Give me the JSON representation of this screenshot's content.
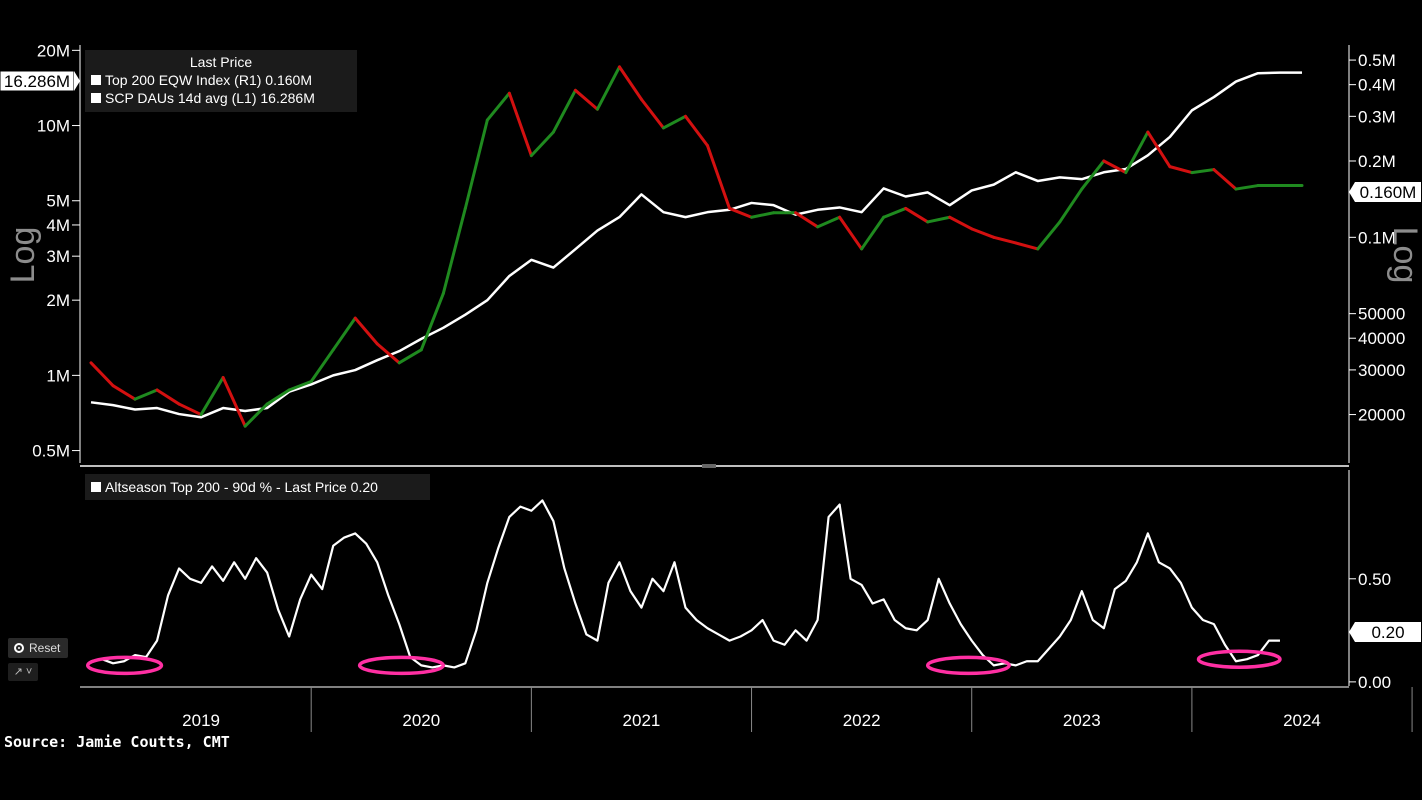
{
  "source": "Source: Jamie Coutts, CMT",
  "controls": {
    "reset_label": "Reset",
    "chart_type_label": "↗ ˅"
  },
  "chart_data": [
    {
      "type": "line",
      "panel": "top",
      "legend": {
        "title": "Last Price",
        "items": [
          {
            "label": "Top 200 EQW Index  (R1) 0.160M",
            "color": "#ffffff"
          },
          {
            "label": "SCP DAUs 14d avg  (L1)  16.286M",
            "color": "#ffffff"
          }
        ]
      },
      "left_axis": {
        "label": "Log",
        "scale": "log",
        "range": [
          450000,
          22000000
        ],
        "ticks": [
          {
            "value": 20000000,
            "label": "20M"
          },
          {
            "value": 10000000,
            "label": "10M"
          },
          {
            "value": 5000000,
            "label": "5M"
          },
          {
            "value": 4000000,
            "label": "4M"
          },
          {
            "value": 3000000,
            "label": "3M"
          },
          {
            "value": 2000000,
            "label": "2M"
          },
          {
            "value": 1000000,
            "label": "1M"
          },
          {
            "value": 500000,
            "label": "0.5M"
          }
        ],
        "last_value_label": "16.286M"
      },
      "right_axis": {
        "label": "Log",
        "scale": "log",
        "range": [
          13000,
          600000
        ],
        "ticks": [
          {
            "value": 500000,
            "label": "0.5M"
          },
          {
            "value": 400000,
            "label": "0.4M"
          },
          {
            "value": 300000,
            "label": "0.3M"
          },
          {
            "value": 200000,
            "label": "0.2M"
          },
          {
            "value": 100000,
            "label": "0.1M"
          },
          {
            "value": 50000,
            "label": "50000"
          },
          {
            "value": 40000,
            "label": "40000"
          },
          {
            "value": 30000,
            "label": "30000"
          },
          {
            "value": 20000,
            "label": "20000"
          }
        ],
        "last_value_label": "0.160M"
      },
      "series": [
        {
          "name": "SCP DAUs 14d avg",
          "axis": "left",
          "color": "#ffffff",
          "x": [
            2019.0,
            2019.1,
            2019.2,
            2019.3,
            2019.4,
            2019.5,
            2019.6,
            2019.7,
            2019.8,
            2019.9,
            2020.0,
            2020.1,
            2020.2,
            2020.3,
            2020.4,
            2020.5,
            2020.6,
            2020.7,
            2020.8,
            2020.9,
            2021.0,
            2021.1,
            2021.2,
            2021.3,
            2021.4,
            2021.5,
            2021.6,
            2021.7,
            2021.8,
            2021.9,
            2022.0,
            2022.1,
            2022.2,
            2022.3,
            2022.4,
            2022.5,
            2022.6,
            2022.7,
            2022.8,
            2022.9,
            2023.0,
            2023.1,
            2023.2,
            2023.3,
            2023.4,
            2023.5,
            2023.6,
            2023.7,
            2023.8,
            2023.9,
            2024.0,
            2024.1,
            2024.2,
            2024.3,
            2024.4,
            2024.5
          ],
          "values": [
            780000,
            760000,
            730000,
            740000,
            700000,
            680000,
            740000,
            720000,
            740000,
            860000,
            920000,
            1000000,
            1050000,
            1150000,
            1250000,
            1400000,
            1550000,
            1750000,
            2000000,
            2500000,
            2900000,
            2700000,
            3200000,
            3800000,
            4300000,
            5300000,
            4500000,
            4300000,
            4500000,
            4600000,
            4900000,
            4800000,
            4400000,
            4600000,
            4700000,
            4500000,
            5600000,
            5200000,
            5400000,
            4800000,
            5500000,
            5800000,
            6500000,
            6000000,
            6200000,
            6100000,
            6500000,
            6700000,
            7600000,
            9000000,
            11500000,
            13000000,
            15000000,
            16200000,
            16286000,
            16286000
          ]
        },
        {
          "name": "Top 200 EQW Index",
          "axis": "right",
          "color": "#d31010",
          "x": [
            2019.0,
            2019.1,
            2019.2,
            2019.3,
            2019.4,
            2019.5,
            2019.6,
            2019.7,
            2019.8,
            2019.9,
            2020.0,
            2020.1,
            2020.2,
            2020.3,
            2020.4,
            2020.5,
            2020.6,
            2020.7,
            2020.8,
            2020.9,
            2021.0,
            2021.1,
            2021.2,
            2021.3,
            2021.4,
            2021.5,
            2021.6,
            2021.7,
            2021.8,
            2021.9,
            2022.0,
            2022.1,
            2022.2,
            2022.3,
            2022.4,
            2022.5,
            2022.6,
            2022.7,
            2022.8,
            2022.9,
            2023.0,
            2023.1,
            2023.2,
            2023.3,
            2023.4,
            2023.5,
            2023.6,
            2023.7,
            2023.8,
            2023.9,
            2024.0,
            2024.1,
            2024.2,
            2024.3,
            2024.4,
            2024.5
          ],
          "values": [
            32000,
            26000,
            23000,
            25000,
            22000,
            20000,
            28000,
            18000,
            22000,
            25000,
            27000,
            36000,
            48000,
            38000,
            32000,
            36000,
            60000,
            130000,
            290000,
            370000,
            210000,
            260000,
            380000,
            320000,
            470000,
            350000,
            270000,
            300000,
            230000,
            130000,
            120000,
            125000,
            125000,
            110000,
            120000,
            90000,
            120000,
            130000,
            115000,
            120000,
            108000,
            100000,
            95000,
            90000,
            115000,
            155000,
            200000,
            180000,
            260000,
            190000,
            180000,
            185000,
            155000,
            160000,
            160000,
            160000
          ]
        }
      ]
    },
    {
      "type": "line",
      "panel": "bottom",
      "legend": {
        "items": [
          {
            "label": "Altseason Top 200 - 90d % - Last Price 0.20",
            "color": "#ffffff"
          }
        ]
      },
      "right_axis": {
        "range": [
          -0.02,
          0.95
        ],
        "ticks": [
          {
            "value": 0.5,
            "label": "0.50"
          },
          {
            "value": 0.0,
            "label": "0.00"
          }
        ],
        "last_value_label": "0.20"
      },
      "x_labels": [
        "2019",
        "2020",
        "2021",
        "2022",
        "2023",
        "2024"
      ],
      "series": [
        {
          "name": "Altseason Top 200 - 90d %",
          "color": "#ffffff",
          "x": [
            2019.0,
            2019.05,
            2019.1,
            2019.15,
            2019.2,
            2019.25,
            2019.3,
            2019.35,
            2019.4,
            2019.45,
            2019.5,
            2019.55,
            2019.6,
            2019.65,
            2019.7,
            2019.75,
            2019.8,
            2019.85,
            2019.9,
            2019.95,
            2020.0,
            2020.05,
            2020.1,
            2020.15,
            2020.2,
            2020.25,
            2020.3,
            2020.35,
            2020.4,
            2020.45,
            2020.5,
            2020.55,
            2020.6,
            2020.65,
            2020.7,
            2020.75,
            2020.8,
            2020.85,
            2020.9,
            2020.95,
            2021.0,
            2021.05,
            2021.1,
            2021.15,
            2021.2,
            2021.25,
            2021.3,
            2021.35,
            2021.4,
            2021.45,
            2021.5,
            2021.55,
            2021.6,
            2021.65,
            2021.7,
            2021.75,
            2021.8,
            2021.85,
            2021.9,
            2021.95,
            2022.0,
            2022.05,
            2022.1,
            2022.15,
            2022.2,
            2022.25,
            2022.3,
            2022.35,
            2022.4,
            2022.45,
            2022.5,
            2022.55,
            2022.6,
            2022.65,
            2022.7,
            2022.75,
            2022.8,
            2022.85,
            2022.9,
            2022.95,
            2023.0,
            2023.05,
            2023.1,
            2023.15,
            2023.2,
            2023.25,
            2023.3,
            2023.35,
            2023.4,
            2023.45,
            2023.5,
            2023.55,
            2023.6,
            2023.65,
            2023.7,
            2023.75,
            2023.8,
            2023.85,
            2023.9,
            2023.95,
            2024.0,
            2024.05,
            2024.1,
            2024.15,
            2024.2,
            2024.25,
            2024.3,
            2024.35,
            2024.4
          ],
          "values": [
            0.1,
            0.11,
            0.09,
            0.1,
            0.13,
            0.12,
            0.2,
            0.42,
            0.55,
            0.5,
            0.48,
            0.56,
            0.49,
            0.58,
            0.5,
            0.6,
            0.53,
            0.35,
            0.22,
            0.4,
            0.52,
            0.45,
            0.66,
            0.7,
            0.72,
            0.67,
            0.58,
            0.42,
            0.28,
            0.12,
            0.08,
            0.07,
            0.08,
            0.07,
            0.09,
            0.25,
            0.48,
            0.65,
            0.8,
            0.85,
            0.83,
            0.88,
            0.78,
            0.55,
            0.38,
            0.23,
            0.2,
            0.48,
            0.58,
            0.44,
            0.36,
            0.5,
            0.44,
            0.58,
            0.36,
            0.3,
            0.26,
            0.23,
            0.2,
            0.22,
            0.25,
            0.3,
            0.2,
            0.18,
            0.25,
            0.2,
            0.3,
            0.8,
            0.86,
            0.5,
            0.47,
            0.38,
            0.4,
            0.3,
            0.26,
            0.25,
            0.3,
            0.5,
            0.38,
            0.28,
            0.2,
            0.13,
            0.08,
            0.09,
            0.08,
            0.1,
            0.1,
            0.16,
            0.22,
            0.3,
            0.44,
            0.3,
            0.26,
            0.45,
            0.49,
            0.58,
            0.72,
            0.58,
            0.55,
            0.48,
            0.36,
            0.3,
            0.28,
            0.18,
            0.1,
            0.11,
            0.13,
            0.2,
            0.2
          ]
        }
      ],
      "highlights": [
        {
          "x_start": 2018.985,
          "x_end": 2019.32,
          "y": 0.08
        },
        {
          "x_start": 2020.22,
          "x_end": 2020.6,
          "y": 0.08
        },
        {
          "x_start": 2022.8,
          "x_end": 2023.17,
          "y": 0.08
        },
        {
          "x_start": 2024.03,
          "x_end": 2024.4,
          "y": 0.11
        }
      ],
      "highlight_color": "#ff2fa3"
    }
  ]
}
